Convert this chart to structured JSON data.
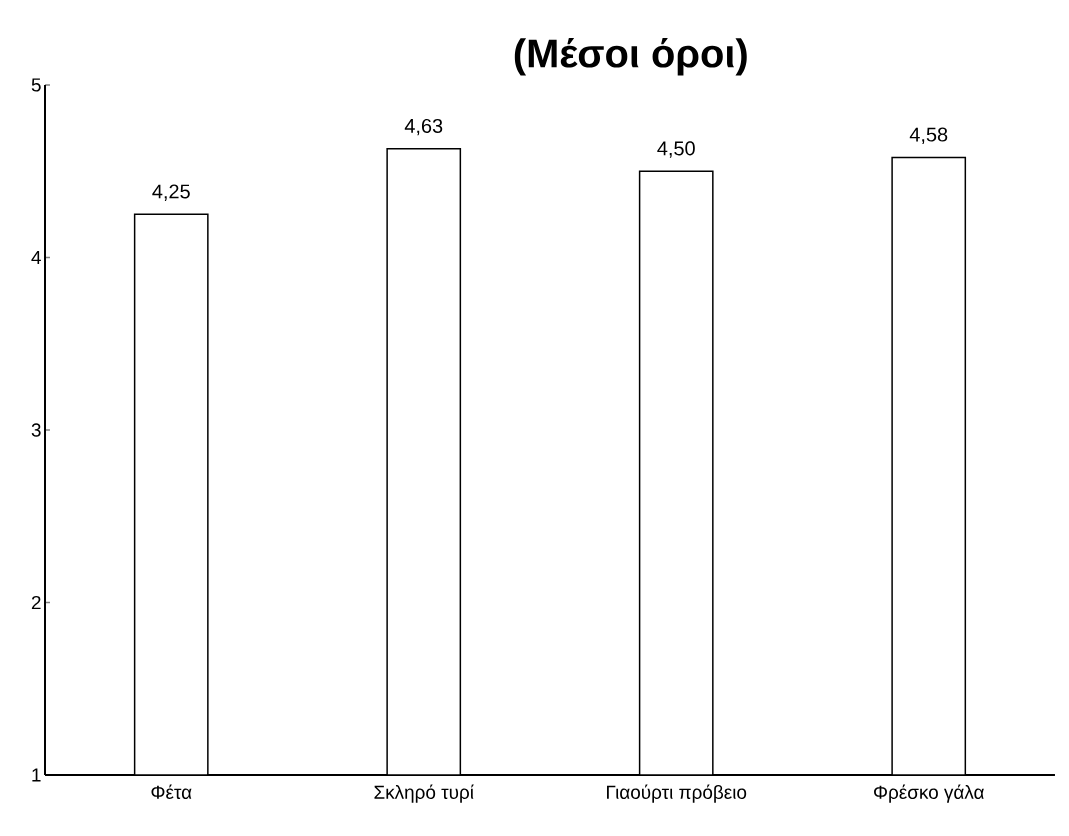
{
  "chart_data": {
    "type": "bar",
    "title": "(Μέσοι όροι)",
    "categories": [
      "Φέτα",
      "Σκληρό τυρί",
      "Γιαούρτι πρόβειο",
      "Φρέσκο γάλα"
    ],
    "values": [
      4.25,
      4.63,
      4.5,
      4.58
    ],
    "value_labels": [
      "4,25",
      "4,63",
      "4,50",
      "4,58"
    ],
    "color": "#ffffff",
    "ylim": [
      1,
      5
    ],
    "yticks": [
      1,
      2,
      3,
      4,
      5
    ]
  }
}
